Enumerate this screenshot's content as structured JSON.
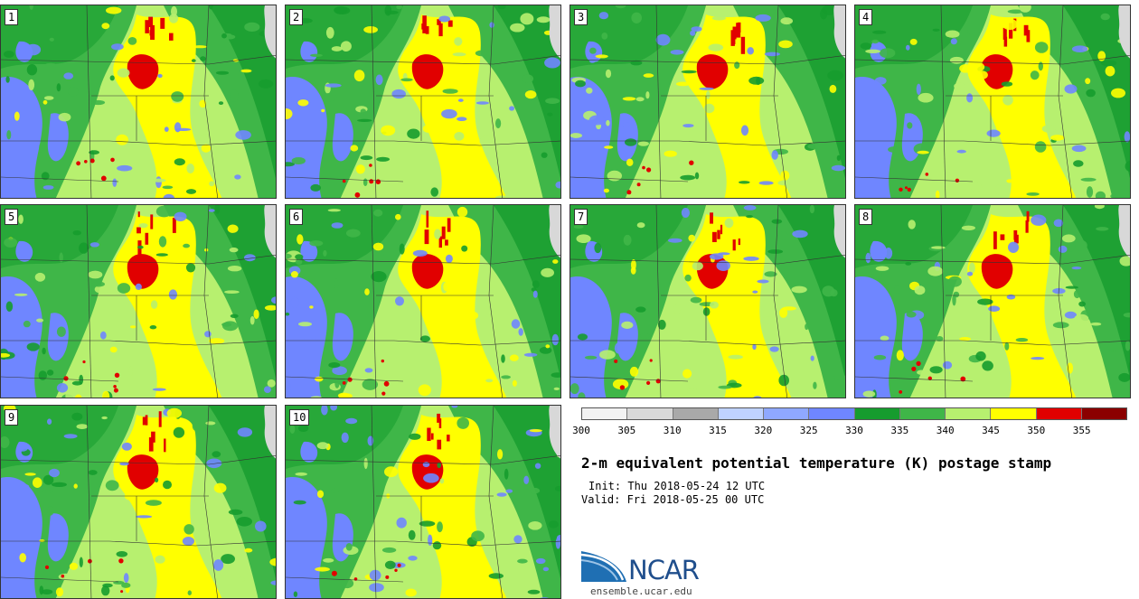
{
  "title": "2-m equivalent potential temperature (K) postage stamp",
  "init": "Init: Thu 2018-05-24 12 UTC",
  "valid": "Valid: Fri 2018-05-25 00 UTC",
  "members": [
    "1",
    "2",
    "3",
    "4",
    "5",
    "6",
    "7",
    "8",
    "9",
    "10"
  ],
  "colorbar": {
    "levels": [
      "300",
      "305",
      "310",
      "315",
      "320",
      "325",
      "330",
      "335",
      "340",
      "345",
      "350",
      "355"
    ],
    "colors": [
      "#f2f2f2",
      "#d9d9d9",
      "#a9a9a9",
      "#bfd2ff",
      "#8fa8ff",
      "#6f86ff",
      "#169c2e",
      "#3fb648",
      "#b7f06f",
      "#ffff00",
      "#e10000",
      "#8b0000"
    ]
  },
  "map_colors": {
    "low": "#6f86ff",
    "dark_green": "#169c2e",
    "mid_green": "#3fb648",
    "light_green": "#b7f06f",
    "yellow": "#ffff00",
    "red": "#e10000",
    "coast": "#d8d8d8"
  },
  "logo": {
    "text": "NCAR",
    "url": "ensemble.ucar.edu"
  }
}
